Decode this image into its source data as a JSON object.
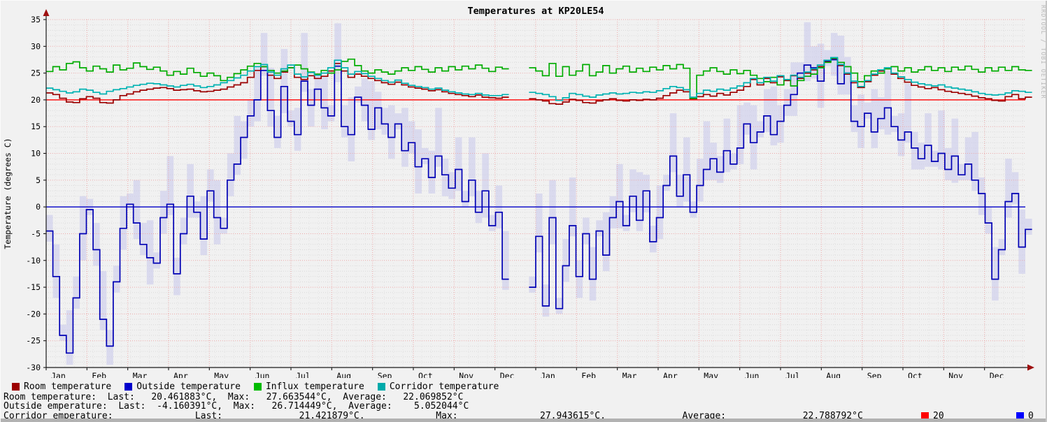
{
  "watermark": "RRDTOOL / TOBI OETIKER",
  "chart_data": {
    "type": "line",
    "style": "step",
    "title": "Temperatures at KP20LE54",
    "ylabel": "Temperature (degrees C)",
    "ylim": [
      -30,
      35
    ],
    "y_tick_step": 5,
    "grid": "on",
    "legend_position": "bottom",
    "x_months": [
      "Jan",
      "Feb",
      "Mar",
      "Apr",
      "May",
      "Jun",
      "Jul",
      "Aug",
      "Sep",
      "Oct",
      "Nov",
      "Dec",
      "Jan",
      "Feb",
      "Mar",
      "Apr",
      "May",
      "Jun",
      "Jul",
      "Aug",
      "Sep",
      "Oct",
      "Nov",
      "Dec"
    ],
    "x_step_days": 5,
    "total_days": 730,
    "gap_note": "data gap mid-Dec year1 to mid-Jan year2 (indices 69-71 null)",
    "hrules": [
      {
        "value": 20,
        "color": "#ff0000",
        "label": "20"
      },
      {
        "value": 0,
        "color": "#0000c8",
        "label": "0"
      }
    ],
    "band": {
      "name": "outside-minmax-band",
      "color": "#ccccec",
      "hi": [
        -1.5,
        -7,
        -22,
        -19.3,
        -13,
        2,
        1.5,
        -3,
        -12,
        -23,
        -11,
        2,
        2.5,
        5,
        -3,
        -2.5,
        -8.5,
        3,
        9.5,
        -9.5,
        -2,
        8,
        1,
        2,
        7,
        5,
        -2,
        10,
        17,
        16,
        20,
        26,
        32.5,
        26,
        17,
        29.5,
        18,
        18.5,
        32.5,
        22,
        25,
        24.5,
        19,
        34.3,
        19,
        20.5,
        22.5,
        24,
        23.5,
        21.5,
        18.5,
        19,
        17.5,
        18.5,
        16,
        14.5,
        11,
        10.5,
        18.5,
        9,
        6.5,
        13,
        3,
        13,
        3,
        10,
        -1.5,
        4,
        -4.5,
        null,
        null,
        null,
        -13,
        2.5,
        -14.5,
        5,
        -17,
        -6,
        5.5,
        -10,
        -2,
        -7.5,
        -2.5,
        -1,
        2,
        8,
        -1.5,
        7,
        6.5,
        6,
        -3.5,
        4,
        6,
        17.5,
        6,
        13,
        1,
        9,
        16,
        12,
        9.5,
        16.5,
        10,
        19,
        19.5,
        19,
        16,
        22,
        22.5,
        19,
        22,
        27,
        27,
        34.5,
        30,
        30.5,
        29.3,
        32.5,
        32,
        28,
        19,
        21,
        19.5,
        22,
        20.5,
        25.5,
        17,
        17.5,
        23,
        14,
        12,
        17.5,
        10.5,
        18,
        11,
        16.5,
        8,
        13,
        14,
        5.5,
        0,
        -7.5,
        -6,
        9,
        6.5,
        -0.5,
        -2.2
      ],
      "lo": [
        -6.5,
        -17,
        -25,
        -29.5,
        -19,
        -10,
        -1.5,
        -11,
        -23,
        -29.5,
        -16,
        -8,
        -0.5,
        -6,
        -9,
        -14.5,
        -11.5,
        -5,
        -1.5,
        -16.5,
        -7,
        -2,
        -2,
        -9,
        1,
        -7,
        -5,
        2,
        6,
        9,
        15,
        16,
        24.5,
        15,
        11,
        17.5,
        15,
        10.5,
        21.5,
        15,
        20,
        14.5,
        16,
        23.3,
        13,
        8.5,
        19.5,
        16,
        12.5,
        14.5,
        13.5,
        9,
        14.5,
        7.5,
        10,
        2.5,
        8,
        2.5,
        7.5,
        2,
        1.5,
        3,
        0,
        2,
        -3,
        -2,
        -4.5,
        -4,
        -15.5,
        null,
        null,
        null,
        -16,
        -8.5,
        -20.5,
        -7,
        -20,
        -14,
        -5.5,
        -17,
        -7,
        -17.5,
        -5.5,
        -12,
        -4,
        -4,
        -4.5,
        -1,
        -4.5,
        -1,
        -8.5,
        -6,
        3,
        6.5,
        0,
        1,
        -2,
        1,
        5,
        5,
        4.5,
        6.5,
        7,
        8,
        13.5,
        7,
        13,
        14,
        11.5,
        12,
        17,
        17,
        24,
        23.5,
        24,
        18.5,
        26.3,
        24.5,
        21,
        21,
        14,
        11,
        16.5,
        11,
        14.5,
        13.5,
        14,
        9.5,
        12,
        7,
        7,
        7.5,
        7.5,
        7,
        5,
        4.5,
        5,
        5,
        3,
        -1.5,
        -5,
        -17.5,
        -9,
        -2,
        0.5,
        -12.5,
        -5.2
      ]
    },
    "series": [
      {
        "name": "Room temperature",
        "color": "#9c0000",
        "values": [
          21.3,
          21.0,
          20.3,
          19.6,
          19.5,
          20.2,
          20.6,
          20.3,
          19.5,
          19.4,
          20.0,
          20.8,
          21.1,
          21.5,
          21.8,
          22.0,
          22.2,
          22.3,
          22.1,
          21.8,
          21.9,
          22.0,
          21.7,
          21.5,
          21.6,
          21.8,
          22.0,
          22.4,
          22.8,
          23.2,
          24.2,
          25.5,
          26.2,
          24.6,
          24.0,
          25.2,
          26.0,
          24.2,
          23.8,
          24.5,
          24.0,
          24.4,
          25.4,
          26.8,
          25.4,
          24.2,
          24.8,
          24.4,
          24.0,
          23.6,
          23.2,
          22.9,
          23.3,
          22.8,
          22.4,
          22.2,
          22.0,
          21.7,
          21.9,
          21.5,
          21.2,
          21.0,
          20.8,
          20.6,
          20.9,
          20.5,
          20.4,
          20.3,
          20.5,
          null,
          null,
          null,
          20.2,
          20.0,
          19.8,
          19.3,
          19.2,
          19.6,
          20.1,
          19.9,
          19.5,
          19.4,
          19.8,
          20.0,
          20.2,
          19.9,
          19.8,
          20.0,
          19.9,
          20.1,
          20.0,
          20.3,
          20.8,
          21.3,
          21.8,
          21.5,
          20.2,
          20.6,
          21.0,
          20.7,
          21.2,
          20.9,
          21.4,
          21.8,
          22.5,
          23.8,
          22.8,
          24.0,
          23.2,
          24.3,
          23.6,
          24.5,
          24.0,
          25.0,
          25.6,
          26.2,
          27.2,
          27.6,
          26.4,
          24.8,
          23.2,
          22.3,
          23.4,
          24.6,
          25.4,
          25.8,
          24.8,
          24.0,
          23.3,
          22.7,
          22.4,
          22.1,
          22.3,
          21.9,
          21.6,
          21.4,
          21.2,
          21.0,
          20.7,
          20.4,
          20.2,
          19.9,
          19.8,
          20.6,
          21.0,
          20.2,
          20.5
        ]
      },
      {
        "name": "Outside temperature",
        "color": "#0000b4",
        "values": [
          -4.5,
          -13,
          -24,
          -27.3,
          -17,
          -5,
          -0.5,
          -8,
          -21,
          -26,
          -14,
          -4,
          0.5,
          -3,
          -7,
          -9.5,
          -10.5,
          -2,
          0.5,
          -12.5,
          -5,
          2,
          -1,
          -6,
          3,
          -2,
          -4,
          5,
          8,
          13,
          17,
          20,
          25.5,
          18,
          13,
          22.5,
          16,
          13.5,
          23.5,
          19,
          22,
          18.5,
          17,
          26.3,
          15,
          13.5,
          20.5,
          19,
          14.5,
          18.5,
          15.5,
          13,
          15.5,
          10.5,
          12,
          7.5,
          9,
          5.5,
          9.5,
          6,
          3.5,
          7,
          1,
          5,
          -1,
          3,
          -3.5,
          -1,
          -13.5,
          null,
          null,
          null,
          -15,
          -5.5,
          -18.5,
          -2,
          -19,
          -11,
          -3.5,
          -13,
          -5,
          -13.5,
          -4.5,
          -9,
          -2,
          1,
          -3.5,
          2,
          -2.5,
          3,
          -6.5,
          -2,
          4,
          9.5,
          2,
          6,
          -1,
          4,
          7,
          9,
          6.5,
          10.5,
          8,
          11,
          15.5,
          12,
          14,
          17,
          13.5,
          16,
          19,
          21,
          25,
          26.5,
          26,
          23.5,
          27.3,
          27.5,
          23,
          25,
          16,
          15,
          17.5,
          14,
          16.5,
          18.5,
          15,
          12.5,
          14,
          11,
          9,
          11.5,
          8.5,
          10,
          7,
          9.5,
          6,
          8,
          5,
          2.5,
          -3,
          -13.5,
          -8,
          1,
          2.5,
          -7.5,
          -4.2
        ]
      },
      {
        "name": "Influx temperature",
        "color": "#00ac00",
        "values": [
          25.3,
          26.2,
          25.6,
          26.8,
          27.1,
          26.0,
          25.4,
          26.3,
          25.8,
          25.2,
          26.5,
          25.6,
          25.9,
          26.9,
          26.2,
          25.7,
          26.1,
          25.4,
          24.6,
          25.3,
          24.8,
          25.9,
          25.1,
          24.4,
          25.0,
          24.5,
          23.6,
          24.2,
          24.9,
          25.6,
          26.3,
          26.8,
          26.2,
          25.5,
          25.0,
          25.4,
          26.0,
          26.5,
          25.8,
          25.2,
          24.8,
          25.5,
          25.0,
          25.6,
          27.2,
          27.6,
          26.4,
          25.4,
          25.0,
          25.6,
          25.2,
          24.8,
          25.4,
          26.0,
          25.5,
          26.2,
          25.7,
          25.2,
          26.0,
          25.4,
          26.2,
          25.6,
          26.3,
          25.8,
          26.5,
          25.9,
          25.3,
          26.1,
          25.8,
          null,
          null,
          null,
          26.0,
          25.4,
          24.5,
          26.8,
          24.4,
          26.2,
          24.6,
          25.4,
          26.6,
          24.5,
          25.2,
          26.4,
          25.0,
          25.8,
          26.3,
          25.2,
          25.9,
          25.3,
          26.1,
          25.6,
          26.4,
          25.8,
          26.6,
          25.9,
          20.3,
          24.6,
          25.4,
          26.0,
          25.3,
          24.8,
          25.6,
          24.9,
          25.5,
          24.6,
          24.0,
          23.4,
          24.2,
          22.8,
          23.8,
          22.6,
          23.6,
          24.4,
          24.8,
          26.0,
          27.0,
          27.8,
          27.0,
          26.2,
          25.0,
          23.4,
          24.5,
          25.4,
          25.0,
          25.8,
          26.2,
          25.4,
          26.0,
          25.2,
          25.6,
          26.2,
          25.5,
          26.0,
          25.3,
          26.1,
          25.6,
          26.3,
          25.7,
          25.2,
          26.0,
          25.4,
          26.1,
          25.5,
          26.2,
          25.6,
          25.5
        ]
      },
      {
        "name": "Corridor temperature",
        "color": "#00b2b2",
        "values": [
          22.2,
          21.9,
          21.6,
          21.3,
          21.5,
          22.0,
          21.8,
          21.4,
          21.1,
          21.6,
          21.9,
          22.1,
          22.4,
          22.7,
          22.9,
          23.1,
          23.0,
          22.8,
          22.6,
          22.4,
          22.7,
          22.9,
          22.6,
          22.3,
          22.5,
          22.8,
          23.2,
          23.6,
          24.1,
          24.6,
          25.4,
          26.2,
          26.6,
          25.2,
          24.6,
          25.8,
          26.5,
          24.8,
          24.3,
          25.1,
          24.6,
          25.0,
          26.0,
          27.4,
          26.0,
          24.8,
          25.3,
          24.9,
          24.4,
          24.0,
          23.6,
          23.3,
          23.7,
          23.1,
          22.7,
          22.5,
          22.3,
          22.0,
          22.2,
          21.8,
          21.5,
          21.3,
          21.1,
          21.0,
          21.2,
          20.9,
          20.8,
          20.8,
          21.0,
          null,
          null,
          null,
          21.4,
          21.2,
          21.0,
          20.6,
          19.9,
          20.4,
          21.2,
          21.0,
          20.7,
          20.5,
          20.9,
          21.1,
          21.3,
          21.1,
          21.2,
          21.4,
          21.3,
          21.5,
          21.4,
          21.7,
          22.1,
          22.5,
          22.3,
          21.9,
          20.5,
          21.2,
          21.8,
          21.6,
          22.0,
          21.8,
          22.2,
          22.6,
          23.2,
          24.0,
          23.2,
          24.2,
          23.5,
          24.5,
          23.8,
          24.6,
          24.2,
          25.2,
          25.8,
          26.5,
          27.4,
          27.9,
          26.6,
          25.0,
          23.5,
          22.5,
          23.6,
          24.8,
          25.6,
          26.0,
          25.0,
          24.3,
          23.8,
          23.3,
          23.0,
          22.8,
          22.6,
          22.8,
          22.4,
          22.2,
          22.0,
          21.8,
          21.5,
          21.2,
          21.0,
          20.9,
          21.0,
          21.3,
          21.7,
          21.6,
          21.4
        ]
      }
    ]
  },
  "legend": {
    "items": [
      {
        "label": "Room temperature",
        "color": "#9c0000"
      },
      {
        "label": "Outside temperature",
        "color": "#0000cc"
      },
      {
        "label": "Influx temperature",
        "color": "#00bb00"
      },
      {
        "label": "Corridor temperature",
        "color": "#00aaaa"
      }
    ]
  },
  "stats": {
    "rows": [
      {
        "name": "room",
        "text": "Room temperature:  Last:   20.461883°C,  Max:   27.663544°C,  Average:   22.069852°C"
      },
      {
        "name": "outside",
        "text": "Outside emperature:  Last:  -4.160391°C,  Max:   26.714449°C,  Average:    5.052044°C"
      },
      {
        "name": "corridor",
        "text": "Corridor emperature:               Last:              21.421879°C,             Max:               27.943615°C,              Average:              22.788792°C"
      }
    ]
  },
  "hrule_legend": {
    "items": [
      {
        "label": "20",
        "color": "#ff0000"
      },
      {
        "label": "0",
        "color": "#0000ff"
      }
    ]
  }
}
